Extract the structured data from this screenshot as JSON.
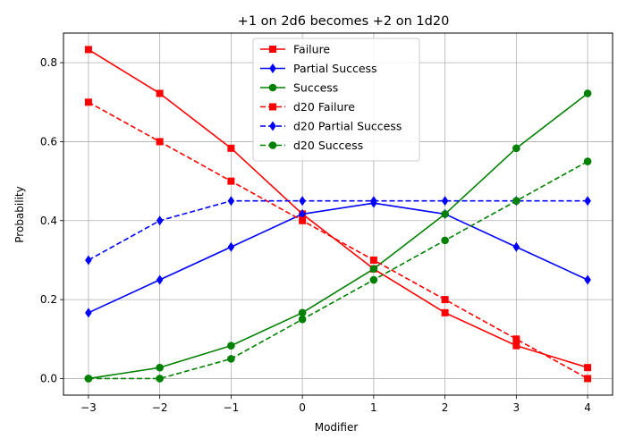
{
  "chart_data": {
    "type": "line",
    "title": "+1 on 2d6 becomes +2 on 1d20",
    "xlabel": "Modifier",
    "ylabel": "Probability",
    "x": [
      -3,
      -2,
      -1,
      0,
      1,
      2,
      3,
      4
    ],
    "x_tick_labels": [
      "−3",
      "−2",
      "−1",
      "0",
      "1",
      "2",
      "3",
      "4"
    ],
    "xlim": [
      -3.35,
      4.35
    ],
    "ylim": [
      -0.042,
      0.875
    ],
    "y_ticks": [
      0.0,
      0.2,
      0.4,
      0.6,
      0.8
    ],
    "y_tick_labels": [
      "0.0",
      "0.2",
      "0.4",
      "0.6",
      "0.8"
    ],
    "grid": true,
    "legend_position": "top-center",
    "series": [
      {
        "name": "Failure",
        "color": "#ff0000",
        "marker": "square",
        "dashed": false,
        "values": [
          0.8333,
          0.7222,
          0.5833,
          0.4167,
          0.2778,
          0.1667,
          0.0833,
          0.0278
        ]
      },
      {
        "name": "Partial Success",
        "color": "#0000ff",
        "marker": "diamond",
        "dashed": false,
        "values": [
          0.1667,
          0.25,
          0.3333,
          0.4167,
          0.4444,
          0.4167,
          0.3333,
          0.25
        ]
      },
      {
        "name": "Success",
        "color": "#008000",
        "marker": "circle",
        "dashed": false,
        "values": [
          0.0,
          0.0278,
          0.0833,
          0.1667,
          0.2778,
          0.4167,
          0.5833,
          0.7222
        ]
      },
      {
        "name": "d20 Failure",
        "color": "#ff0000",
        "marker": "square",
        "dashed": true,
        "values": [
          0.7,
          0.6,
          0.5,
          0.4,
          0.3,
          0.2,
          0.1,
          0.0
        ]
      },
      {
        "name": "d20 Partial Success",
        "color": "#0000ff",
        "marker": "diamond",
        "dashed": true,
        "values": [
          0.3,
          0.4,
          0.45,
          0.45,
          0.45,
          0.45,
          0.45,
          0.45
        ]
      },
      {
        "name": "d20 Success",
        "color": "#008000",
        "marker": "circle",
        "dashed": true,
        "values": [
          0.0,
          0.0,
          0.05,
          0.15,
          0.25,
          0.35,
          0.45,
          0.55
        ]
      }
    ]
  }
}
